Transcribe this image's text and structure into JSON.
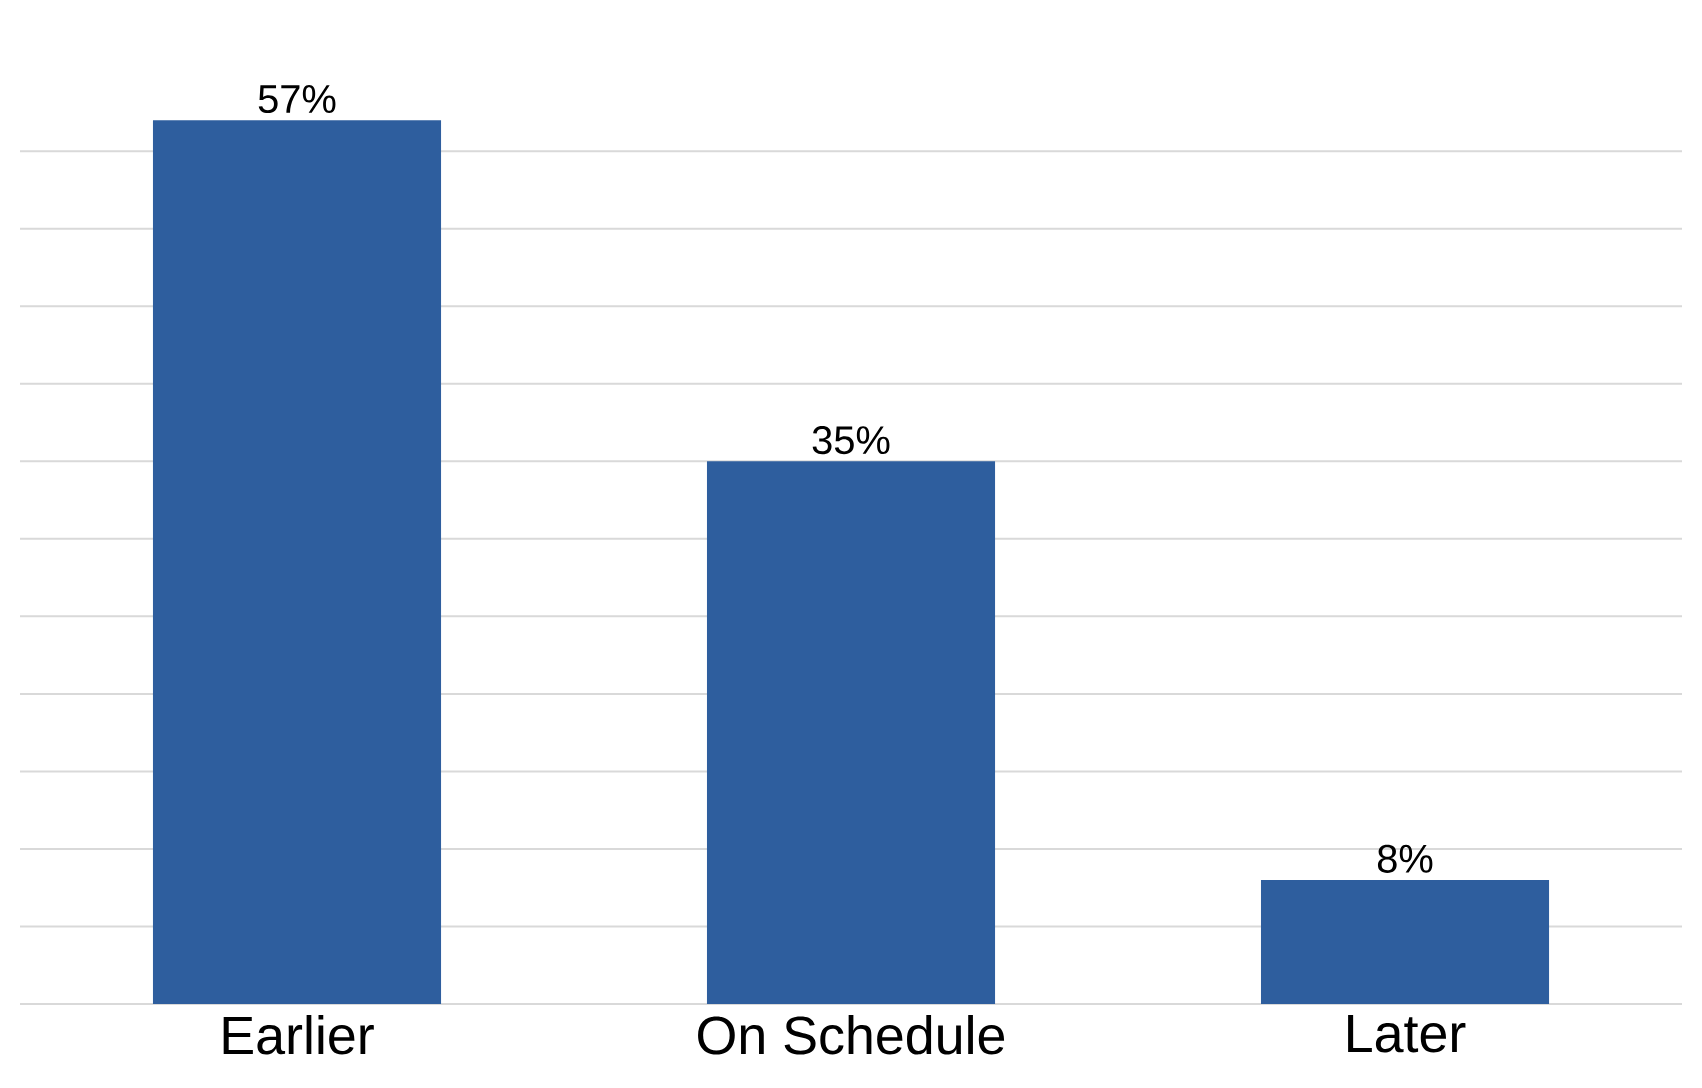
{
  "chart_data": {
    "type": "bar",
    "categories": [
      "Earlier",
      "On Schedule",
      "Later"
    ],
    "values": [
      57,
      35,
      8
    ],
    "value_labels": [
      "57%",
      "35%",
      "8%"
    ],
    "color": "#2e5e9e",
    "grid": "y",
    "tick_labels": "x"
  }
}
